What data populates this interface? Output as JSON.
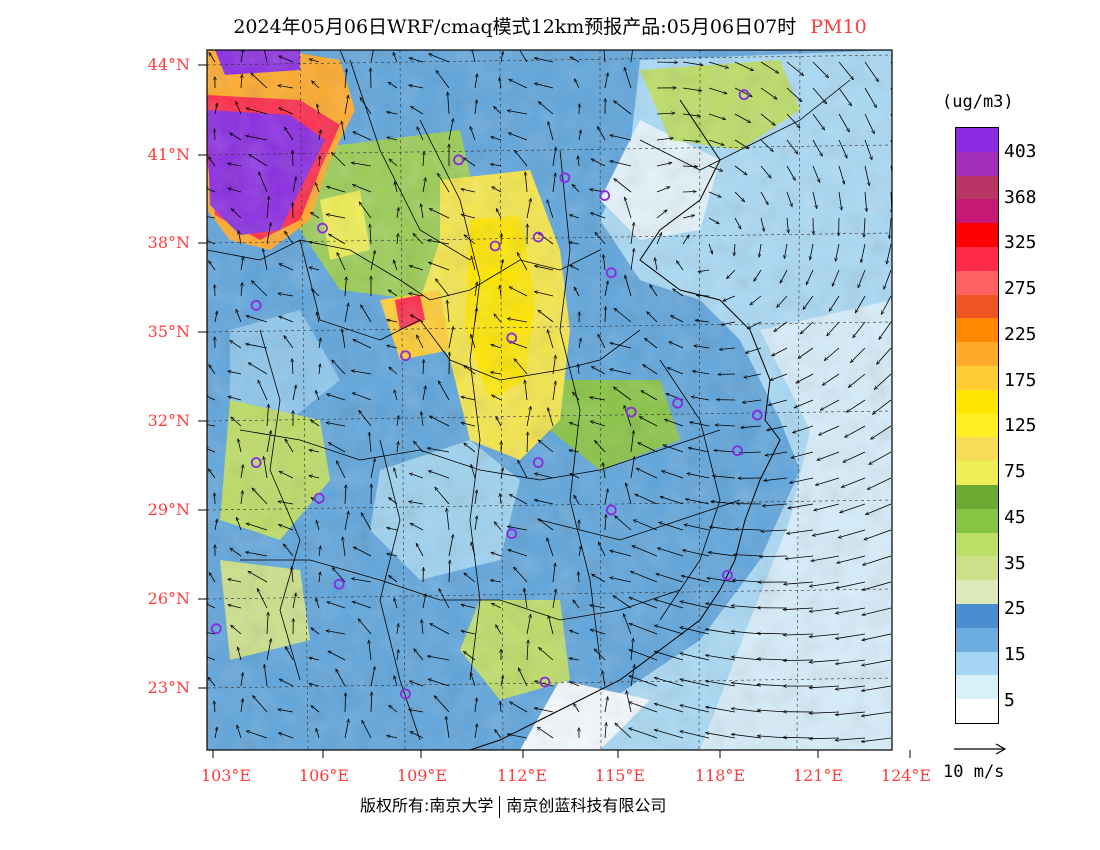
{
  "title": {
    "main": "2024年05月06日WRF/cmaq模式12km预报产品:05月06日07时",
    "variable": "PM10"
  },
  "axes": {
    "lat_labels": [
      "44°N",
      "41°N",
      "38°N",
      "35°N",
      "32°N",
      "29°N",
      "26°N",
      "23°N"
    ],
    "lon_labels": [
      "103°E",
      "106°E",
      "109°E",
      "112°E",
      "115°E",
      "118°E",
      "121°E",
      "124°E"
    ]
  },
  "legend": {
    "unit": "(ug/m3)",
    "labels": [
      "403",
      "368",
      "325",
      "275",
      "225",
      "175",
      "125",
      "75",
      "45",
      "35",
      "25",
      "15",
      "5"
    ],
    "colors": [
      "#8a2be2",
      "#a42eb9",
      "#b83566",
      "#c81876",
      "#ff0000",
      "#ff2a4a",
      "#ff6060",
      "#ee5522",
      "#ff8800",
      "#ffaa2a",
      "#ffcc33",
      "#ffe600",
      "#ffee22",
      "#f5dd55",
      "#eeee55",
      "#6aaa33",
      "#88c444",
      "#bcdd66",
      "#cce08a",
      "#dde9bb",
      "#4a8ed0",
      "#6cacdf",
      "#a4d6f4",
      "#d9f0fb",
      "#ffffff"
    ],
    "wind_ref": "10 m/s"
  },
  "stations": [
    {
      "lon": 119.0,
      "lat": 43.0
    },
    {
      "lon": 110.4,
      "lat": 40.8
    },
    {
      "lon": 113.6,
      "lat": 40.2
    },
    {
      "lon": 114.8,
      "lat": 39.6
    },
    {
      "lon": 106.3,
      "lat": 38.5
    },
    {
      "lon": 111.5,
      "lat": 37.9
    },
    {
      "lon": 112.8,
      "lat": 38.2
    },
    {
      "lon": 115.0,
      "lat": 37.0
    },
    {
      "lon": 104.3,
      "lat": 35.9
    },
    {
      "lon": 112.0,
      "lat": 34.8
    },
    {
      "lon": 108.8,
      "lat": 34.2
    },
    {
      "lon": 115.6,
      "lat": 32.3
    },
    {
      "lon": 117.0,
      "lat": 32.6
    },
    {
      "lon": 119.4,
      "lat": 32.2
    },
    {
      "lon": 118.8,
      "lat": 31.0
    },
    {
      "lon": 104.3,
      "lat": 30.6
    },
    {
      "lon": 112.8,
      "lat": 30.6
    },
    {
      "lon": 106.2,
      "lat": 29.4
    },
    {
      "lon": 115.0,
      "lat": 29.0
    },
    {
      "lon": 112.0,
      "lat": 28.2
    },
    {
      "lon": 118.5,
      "lat": 26.8
    },
    {
      "lon": 106.8,
      "lat": 26.5
    },
    {
      "lon": 103.1,
      "lat": 25.0
    },
    {
      "lon": 108.8,
      "lat": 22.8
    },
    {
      "lon": 113.0,
      "lat": 23.2
    }
  ],
  "footer": {
    "copyright": "版权所有:南京大学",
    "company": "南京创蓝科技有限公司"
  }
}
